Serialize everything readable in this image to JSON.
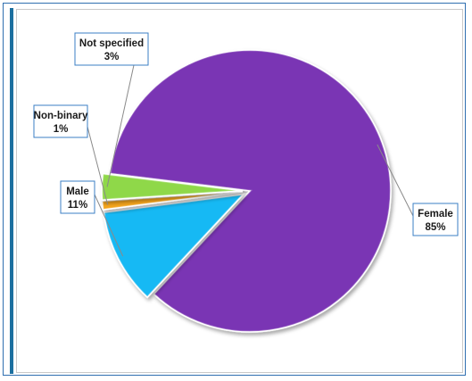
{
  "chart_data": {
    "type": "pie",
    "title": "",
    "categories": [
      "Female",
      "Male",
      "Non-binary",
      "Not specified"
    ],
    "values": [
      85,
      11,
      1,
      3
    ],
    "labels": [
      "85%",
      "11%",
      "1%",
      "3%"
    ],
    "colors": [
      "#7a35b4",
      "#19b9f4",
      "#f2a31c",
      "#8fd848"
    ],
    "legend": "none",
    "data_labels": "callouts with category name and percentage"
  }
}
